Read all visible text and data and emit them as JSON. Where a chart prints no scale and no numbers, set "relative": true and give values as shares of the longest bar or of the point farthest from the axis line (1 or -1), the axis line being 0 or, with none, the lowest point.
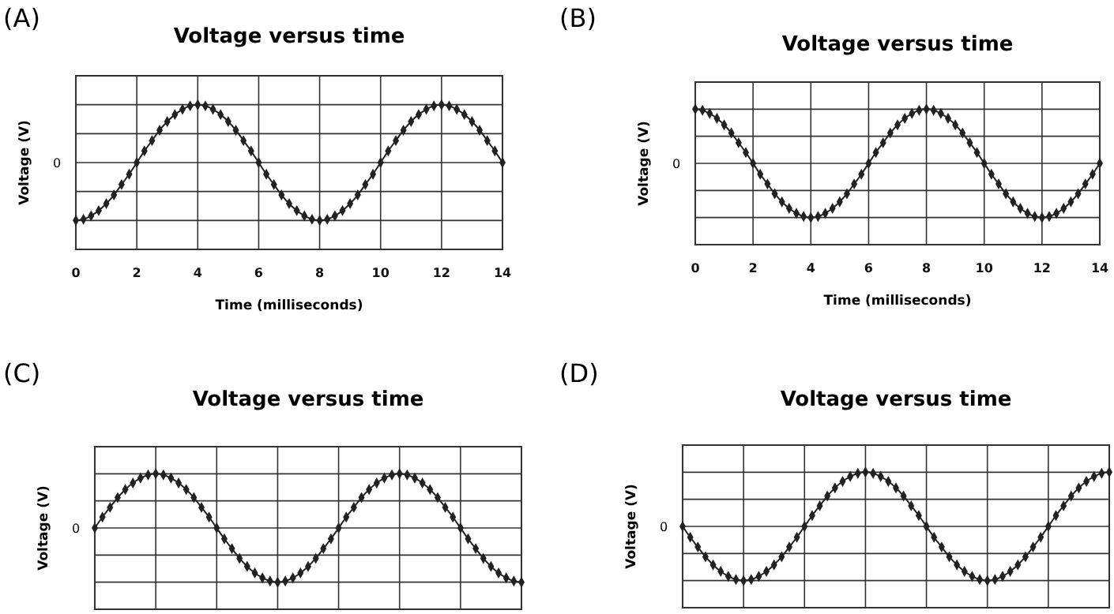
{
  "chart_data": [
    {
      "type": "line",
      "title": "Voltage versus time",
      "xlabel": "Time (milliseconds)",
      "ylabel": "Voltage (V)",
      "relative": true,
      "grid": true,
      "marker": "diamond",
      "annotations": [
        "(A)",
        "0"
      ],
      "xlim": [
        0,
        14
      ],
      "xticks": [
        0,
        2,
        4,
        6,
        8,
        10,
        12,
        14
      ],
      "x": [
        0,
        0.25,
        0.5,
        0.75,
        1,
        1.25,
        1.5,
        1.75,
        2,
        2.25,
        2.5,
        2.75,
        3,
        3.25,
        3.5,
        3.75,
        4,
        4.25,
        4.5,
        4.75,
        5,
        5.25,
        5.5,
        5.75,
        6,
        6.25,
        6.5,
        6.75,
        7,
        7.25,
        7.5,
        7.75,
        8,
        8.25,
        8.5,
        8.75,
        9,
        9.25,
        9.5,
        9.75,
        10,
        10.25,
        10.5,
        10.75,
        11,
        11.25,
        11.5,
        11.75,
        12,
        12.25,
        12.5,
        12.75,
        13,
        13.25,
        13.5,
        13.75,
        14
      ],
      "series": [
        {
          "color": "#222222",
          "values": [
            -1,
            -0.98,
            -0.92,
            -0.83,
            -0.71,
            -0.56,
            -0.38,
            -0.2,
            0,
            0.2,
            0.38,
            0.56,
            0.71,
            0.83,
            0.92,
            0.98,
            1,
            0.98,
            0.92,
            0.83,
            0.71,
            0.56,
            0.38,
            0.2,
            0,
            -0.2,
            -0.38,
            -0.56,
            -0.71,
            -0.83,
            -0.92,
            -0.98,
            -1,
            -0.98,
            -0.92,
            -0.83,
            -0.71,
            -0.56,
            -0.38,
            -0.2,
            0,
            0.2,
            0.38,
            0.56,
            0.71,
            0.83,
            0.92,
            0.98,
            1,
            0.98,
            0.92,
            0.83,
            0.71,
            0.56,
            0.38,
            0.2,
            0
          ]
        }
      ]
    },
    {
      "type": "line",
      "title": "Voltage versus time",
      "xlabel": "Time (milliseconds)",
      "ylabel": "Voltage (V)",
      "relative": true,
      "grid": true,
      "marker": "diamond",
      "annotations": [
        "(B)",
        "0"
      ],
      "xlim": [
        0,
        14
      ],
      "xticks": [
        0,
        2,
        4,
        6,
        8,
        10,
        12,
        14
      ],
      "x": [
        0,
        0.25,
        0.5,
        0.75,
        1,
        1.25,
        1.5,
        1.75,
        2,
        2.25,
        2.5,
        2.75,
        3,
        3.25,
        3.5,
        3.75,
        4,
        4.25,
        4.5,
        4.75,
        5,
        5.25,
        5.5,
        5.75,
        6,
        6.25,
        6.5,
        6.75,
        7,
        7.25,
        7.5,
        7.75,
        8,
        8.25,
        8.5,
        8.75,
        9,
        9.25,
        9.5,
        9.75,
        10,
        10.25,
        10.5,
        10.75,
        11,
        11.25,
        11.5,
        11.75,
        12,
        12.25,
        12.5,
        12.75,
        13,
        13.25,
        13.5,
        13.75,
        14
      ],
      "series": [
        {
          "color": "#222222",
          "values": [
            1,
            0.98,
            0.92,
            0.83,
            0.71,
            0.56,
            0.38,
            0.2,
            0,
            -0.2,
            -0.38,
            -0.56,
            -0.71,
            -0.83,
            -0.92,
            -0.98,
            -1,
            -0.98,
            -0.92,
            -0.83,
            -0.71,
            -0.56,
            -0.38,
            -0.2,
            0,
            0.2,
            0.38,
            0.56,
            0.71,
            0.83,
            0.92,
            0.98,
            1,
            0.98,
            0.92,
            0.83,
            0.71,
            0.56,
            0.38,
            0.2,
            0,
            -0.2,
            -0.38,
            -0.56,
            -0.71,
            -0.83,
            -0.92,
            -0.98,
            -1,
            -0.98,
            -0.92,
            -0.83,
            -0.71,
            -0.56,
            -0.38,
            -0.2,
            0
          ]
        }
      ]
    },
    {
      "type": "line",
      "title": "Voltage versus time",
      "ylabel": "Voltage (V)",
      "relative": true,
      "grid": true,
      "marker": "diamond",
      "annotations": [
        "(C)",
        "0"
      ],
      "categories": [
        null,
        null,
        null,
        null,
        null,
        null,
        null,
        null,
        null,
        null,
        null,
        null,
        null,
        null,
        null,
        null,
        null,
        null,
        null,
        null,
        null,
        null,
        null,
        null,
        null,
        null,
        null,
        null,
        null,
        null,
        null,
        null,
        null,
        null,
        null,
        null,
        null,
        null,
        null,
        null,
        null,
        null,
        null,
        null,
        null,
        null,
        null,
        null,
        null,
        null,
        null,
        null,
        null,
        null,
        null,
        null,
        null
      ],
      "series": [
        {
          "color": "#222222",
          "values": [
            0,
            0.2,
            0.38,
            0.56,
            0.71,
            0.83,
            0.92,
            0.98,
            1,
            0.98,
            0.92,
            0.83,
            0.71,
            0.56,
            0.38,
            0.2,
            0,
            -0.2,
            -0.38,
            -0.56,
            -0.71,
            -0.83,
            -0.92,
            -0.98,
            -1,
            -0.98,
            -0.92,
            -0.83,
            -0.71,
            -0.56,
            -0.38,
            -0.2,
            0,
            0.2,
            0.38,
            0.56,
            0.71,
            0.83,
            0.92,
            0.98,
            1,
            0.98,
            0.92,
            0.83,
            0.71,
            0.56,
            0.38,
            0.2,
            0,
            -0.2,
            -0.38,
            -0.56,
            -0.71,
            -0.83,
            -0.92,
            -0.98,
            -1
          ]
        }
      ]
    },
    {
      "type": "line",
      "title": "Voltage versus time",
      "ylabel": "Voltage (V)",
      "relative": true,
      "grid": true,
      "marker": "diamond",
      "annotations": [
        "(D)",
        "0"
      ],
      "categories": [
        null,
        null,
        null,
        null,
        null,
        null,
        null,
        null,
        null,
        null,
        null,
        null,
        null,
        null,
        null,
        null,
        null,
        null,
        null,
        null,
        null,
        null,
        null,
        null,
        null,
        null,
        null,
        null,
        null,
        null,
        null,
        null,
        null,
        null,
        null,
        null,
        null,
        null,
        null,
        null,
        null,
        null,
        null,
        null,
        null,
        null,
        null,
        null,
        null,
        null,
        null,
        null,
        null,
        null,
        null,
        null,
        null
      ],
      "series": [
        {
          "color": "#222222",
          "values": [
            0,
            -0.2,
            -0.38,
            -0.56,
            -0.71,
            -0.83,
            -0.92,
            -0.98,
            -1,
            -0.98,
            -0.92,
            -0.83,
            -0.71,
            -0.56,
            -0.38,
            -0.2,
            0,
            0.2,
            0.38,
            0.56,
            0.71,
            0.83,
            0.92,
            0.98,
            1,
            0.98,
            0.92,
            0.83,
            0.71,
            0.56,
            0.38,
            0.2,
            0,
            -0.2,
            -0.38,
            -0.56,
            -0.71,
            -0.83,
            -0.92,
            -0.98,
            -1,
            -0.98,
            -0.92,
            -0.83,
            -0.71,
            -0.56,
            -0.38,
            -0.2,
            0,
            0.2,
            0.38,
            0.56,
            0.71,
            0.83,
            0.92,
            0.98,
            1
          ]
        }
      ]
    }
  ]
}
